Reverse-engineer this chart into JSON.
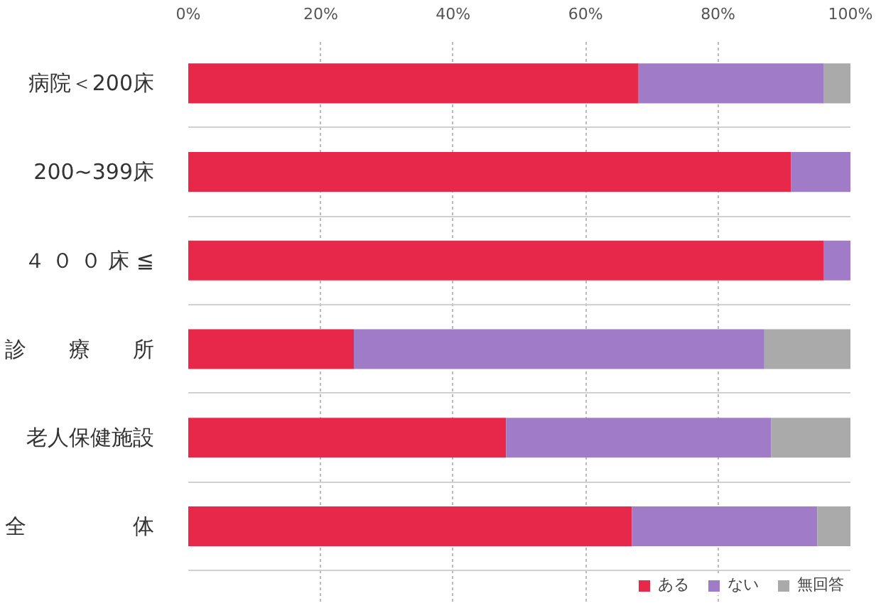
{
  "chart_data": {
    "type": "bar",
    "orientation": "horizontal",
    "stacked": true,
    "categories": [
      "病院＜200床",
      "200~399床",
      "４ ０ ０ 床 ≦",
      "診　　療　　所",
      "老人保健施設",
      "全　　　　　体"
    ],
    "series": [
      {
        "name": "ある",
        "color": "#e8284a",
        "values": [
          68,
          91,
          96,
          25,
          48,
          67
        ]
      },
      {
        "name": "ない",
        "color": "#a07cc8",
        "values": [
          28,
          9,
          4,
          62,
          40,
          28
        ]
      },
      {
        "name": "無回答",
        "color": "#aaaaaa",
        "values": [
          4,
          0,
          0,
          13,
          12,
          5
        ]
      }
    ],
    "xlim": [
      0,
      100
    ],
    "xticks": [
      {
        "value": 0,
        "label": "0%"
      },
      {
        "value": 20,
        "label": "20%"
      },
      {
        "value": 40,
        "label": "40%"
      },
      {
        "value": 60,
        "label": "60%"
      },
      {
        "value": 80,
        "label": "80%"
      },
      {
        "value": 100,
        "label": "100%"
      }
    ],
    "grid": "x",
    "legend": "bottom right"
  }
}
